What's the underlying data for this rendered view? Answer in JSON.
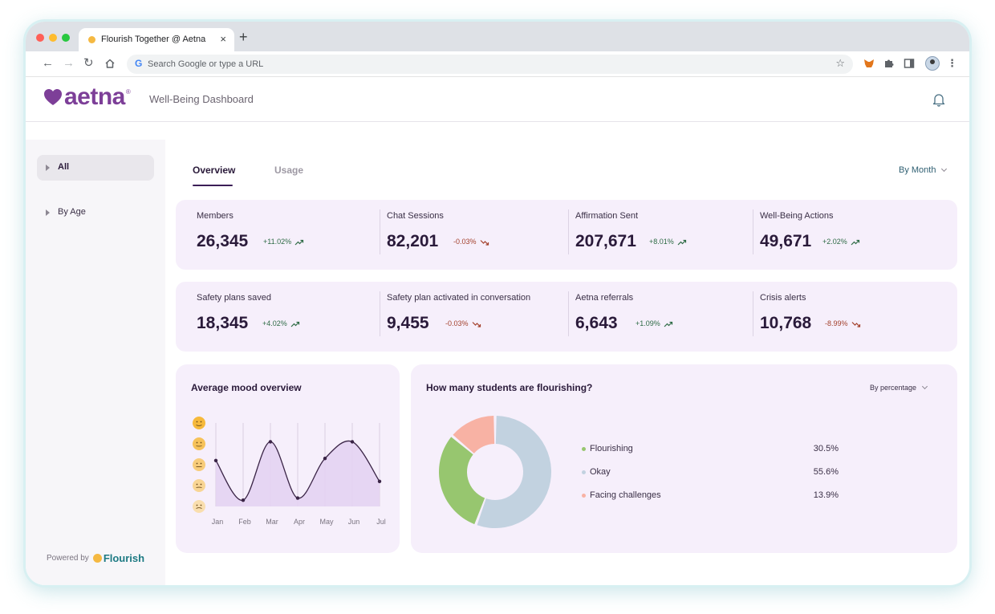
{
  "browser": {
    "tab_title": "Flourish Together @ Aetna",
    "omnibox_placeholder": "Search Google or type a URL"
  },
  "header": {
    "logo_text": "aetna",
    "logo_reg": "®",
    "title": "Well-Being Dashboard"
  },
  "sidebar": {
    "items": [
      {
        "label": "All"
      },
      {
        "label": "By Age"
      }
    ],
    "powered_by": "Powered by",
    "brand": "Flourish"
  },
  "tabs": [
    {
      "label": "Overview"
    },
    {
      "label": "Usage"
    }
  ],
  "period_select": "By Month",
  "stats_row1": [
    {
      "label": "Members",
      "value": "26,345",
      "change": "+11.02%",
      "trend": "up"
    },
    {
      "label": "Chat Sessions",
      "value": "82,201",
      "change": "-0.03%",
      "trend": "down"
    },
    {
      "label": "Affirmation Sent",
      "value": "207,671",
      "change": "+8.01%",
      "trend": "up"
    },
    {
      "label": "Well-Being Actions",
      "value": "49,671",
      "change": "+2.02%",
      "trend": "up"
    }
  ],
  "stats_row2": [
    {
      "label": "Safety plans saved",
      "value": "18,345",
      "change": "+4.02%",
      "trend": "up"
    },
    {
      "label": "Safety plan activated in conversation",
      "value": "9,455",
      "change": "-0.03%",
      "trend": "down"
    },
    {
      "label": "Aetna referrals",
      "value": "6,643",
      "change": "+1.09%",
      "trend": "up"
    },
    {
      "label": "Crisis alerts",
      "value": "10,768",
      "change": "-8.99%",
      "trend": "down"
    }
  ],
  "mood_panel": {
    "title": "Average mood overview"
  },
  "flourish_panel": {
    "title": "How many students are flourishing?",
    "select": "By percentage"
  },
  "colors": {
    "flourishing": "#97c66f",
    "okay": "#c2d2e0",
    "facing_challenges": "#f8b2a4",
    "brand_purple": "#7d3f98",
    "area_fill": "#e4d3f2"
  },
  "chart_data": [
    {
      "type": "area",
      "title": "Average mood overview",
      "categories": [
        "Jan",
        "Feb",
        "Mar",
        "Apr",
        "May",
        "Jun",
        "Jul"
      ],
      "y_scale": "mood levels 1 (lowest) to 5 (highest), shown as face icons",
      "ylim": [
        1,
        5
      ],
      "series": [
        {
          "values": [
            3.2,
            1.3,
            4.1,
            1.4,
            3.3,
            4.1,
            2.2
          ]
        }
      ],
      "grid": "vertical"
    },
    {
      "type": "pie",
      "title": "How many students are flourishing?",
      "legend": "right",
      "categories": [
        "Flourishing",
        "Okay",
        "Facing challenges"
      ],
      "values": [
        30.5,
        55.6,
        13.9
      ],
      "value_labels": [
        "30.5%",
        "55.6%",
        "13.9%"
      ],
      "colors": [
        "#97c66f",
        "#c2d2e0",
        "#f8b2a4"
      ]
    }
  ]
}
